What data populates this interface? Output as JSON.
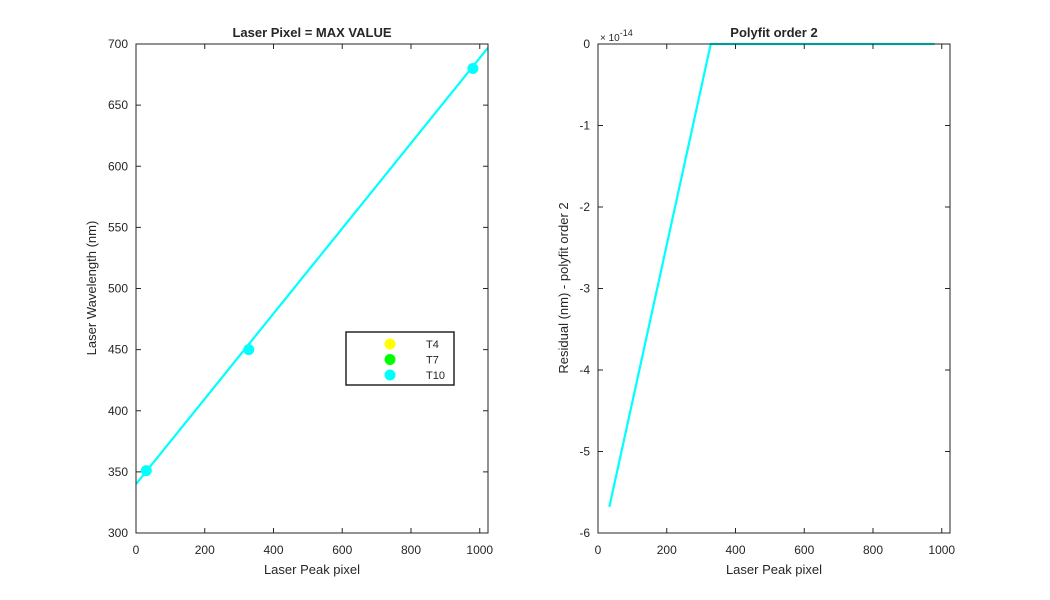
{
  "figure": {
    "background": "#ffffff"
  },
  "chart_data": [
    {
      "type": "line",
      "title": "Laser Pixel = MAX VALUE",
      "xlabel": "Laser Peak pixel",
      "ylabel": "Laser Wavelength (nm)",
      "xlim": [
        0,
        1024
      ],
      "ylim": [
        300,
        700
      ],
      "xticks": [
        "0",
        "200",
        "400",
        "600",
        "800",
        "1000"
      ],
      "yticks": [
        "300",
        "350",
        "400",
        "450",
        "500",
        "550",
        "600",
        "650",
        "700"
      ],
      "grid": false,
      "legend_position": "center-right",
      "legend": [
        {
          "label": "T4",
          "color": "#ffff00"
        },
        {
          "label": "T7",
          "color": "#00ff00"
        },
        {
          "label": "T10",
          "color": "#00ffff"
        }
      ],
      "series": [
        {
          "name": "T10",
          "color": "#00ffff",
          "line_x": [
            0,
            1024
          ],
          "line_y": [
            340,
            697
          ],
          "points_x": [
            30,
            328,
            980
          ],
          "points_y": [
            351,
            450,
            680
          ]
        }
      ]
    },
    {
      "type": "line",
      "title": "Polyfit order 2",
      "xlabel": "Laser Peak pixel",
      "ylabel": "Residual (nm) - polyfit order 2",
      "xlim": [
        0,
        1024
      ],
      "ylim": [
        -6,
        0
      ],
      "y_exponent_label": "× 10",
      "y_exponent_power": "-14",
      "xticks": [
        "0",
        "200",
        "400",
        "600",
        "800",
        "1000"
      ],
      "yticks": [
        "0",
        "-1",
        "-2",
        "-3",
        "-4",
        "-5",
        "-6"
      ],
      "grid": false,
      "series": [
        {
          "color": "#00ffff",
          "x": [
            33,
            328,
            980
          ],
          "y": [
            -5.68,
            0,
            0
          ]
        }
      ]
    }
  ]
}
